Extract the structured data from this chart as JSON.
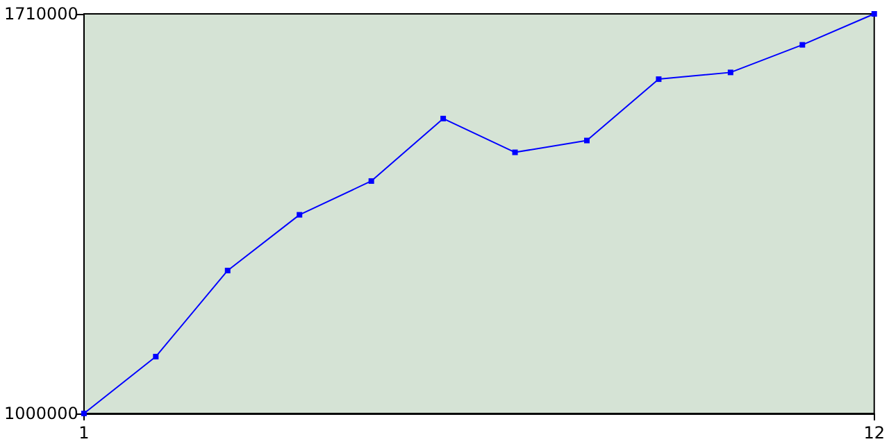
{
  "chart_data": {
    "type": "line",
    "x": [
      1,
      2,
      3,
      4,
      5,
      6,
      7,
      8,
      9,
      10,
      11,
      12
    ],
    "series": [
      {
        "color": "#0000ff",
        "values": [
          1000000,
          1101000,
          1254000,
          1353000,
          1413000,
          1524000,
          1464000,
          1485000,
          1594000,
          1606000,
          1655000,
          1710000
        ]
      }
    ],
    "xlim": [
      1,
      12
    ],
    "xticks": [
      1,
      12
    ],
    "ylim": [
      1000000,
      1710000
    ],
    "yticks": [
      1000000,
      1710000
    ],
    "marker": "square",
    "grid": false
  }
}
